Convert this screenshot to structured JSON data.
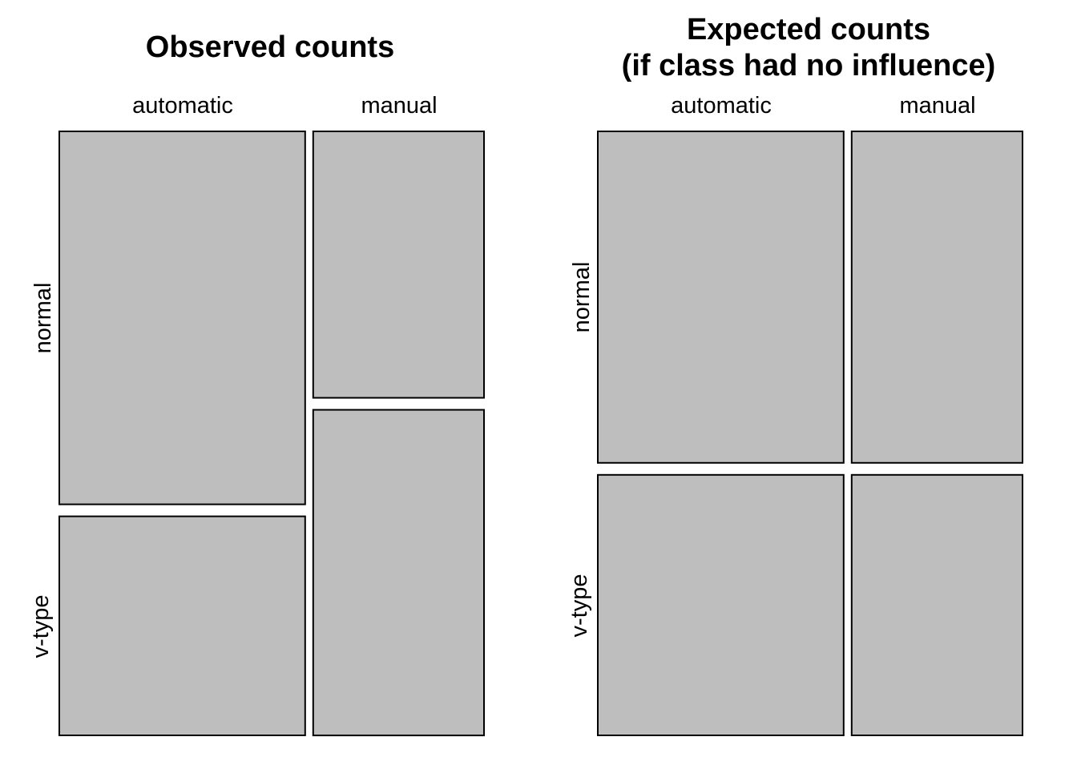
{
  "chart_data": [
    {
      "type": "mosaic",
      "title": "Observed counts",
      "title_lines": [
        "Observed counts"
      ],
      "columns": [
        "automatic",
        "manual"
      ],
      "rows": [
        "normal",
        "v-type"
      ],
      "column_proportions": [
        0.59,
        0.41
      ],
      "row_proportions_within_column": {
        "automatic": [
          0.63,
          0.37
        ],
        "manual": [
          0.45,
          0.55
        ]
      },
      "fill_color": "#bebebe",
      "border_color": "#000000"
    },
    {
      "type": "mosaic",
      "title": "Expected counts (if class had no influence)",
      "title_lines": [
        "Expected counts",
        "(if class had no influence)"
      ],
      "columns": [
        "automatic",
        "manual"
      ],
      "rows": [
        "normal",
        "v-type"
      ],
      "column_proportions": [
        0.59,
        0.41
      ],
      "row_proportions_within_column": {
        "automatic": [
          0.56,
          0.44
        ],
        "manual": [
          0.56,
          0.44
        ]
      },
      "fill_color": "#bebebe",
      "border_color": "#000000"
    }
  ]
}
